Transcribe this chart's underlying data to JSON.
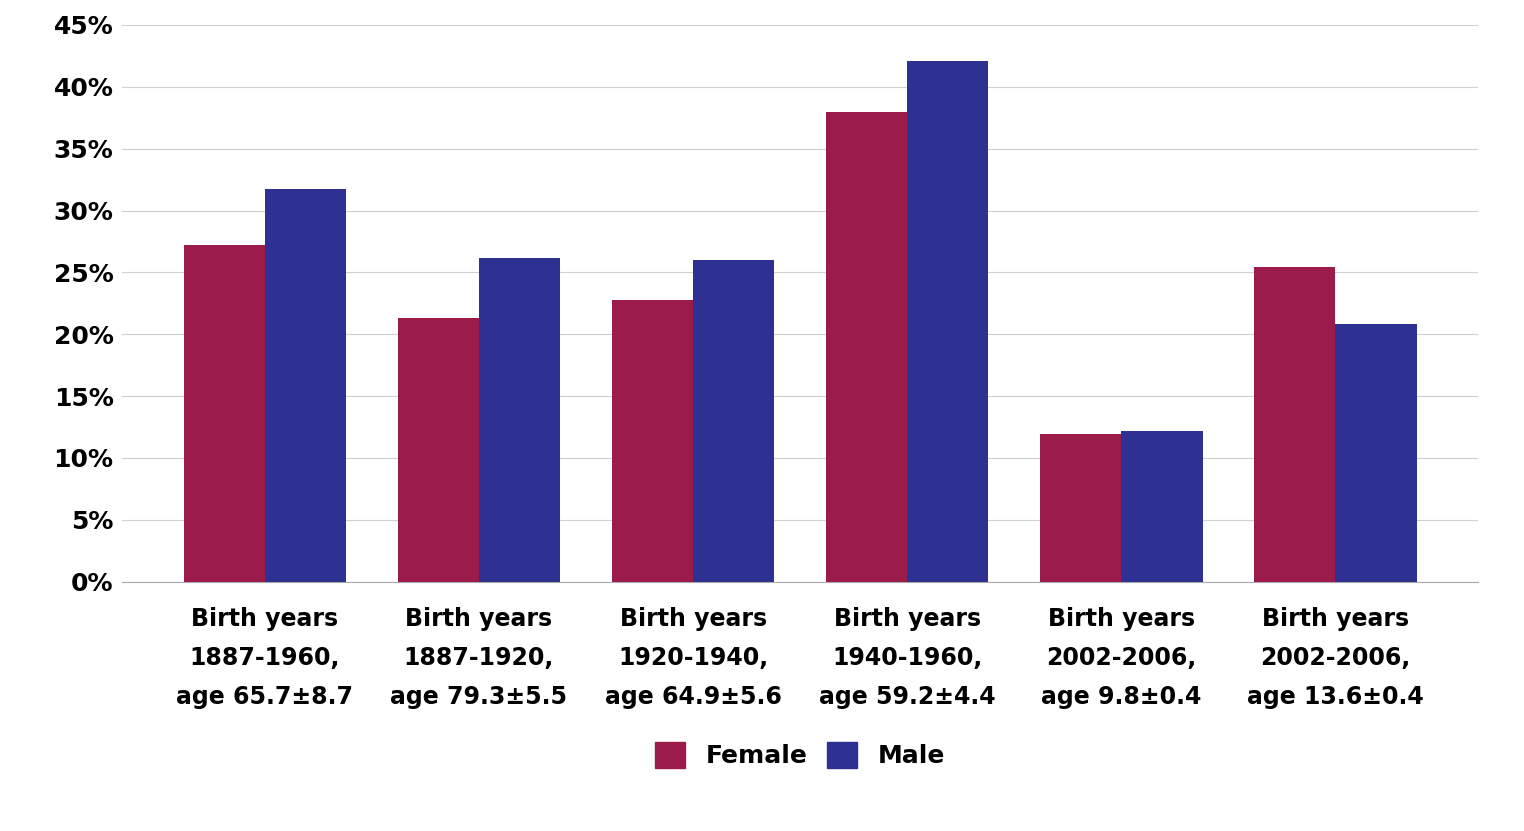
{
  "categories": [
    "Birth years\n1887-1960,\nage 65.7±8.7",
    "Birth years\n1887-1920,\nage 79.3±5.5",
    "Birth years\n1920-1940,\nage 64.9±5.6",
    "Birth years\n1940-1960,\nage 59.2±4.4",
    "Birth years\n2002-2006,\nage 9.8±0.4",
    "Birth years\n2002-2006,\nage 13.6±0.4"
  ],
  "female_values": [
    0.272,
    0.213,
    0.228,
    0.38,
    0.119,
    0.254
  ],
  "male_values": [
    0.317,
    0.262,
    0.26,
    0.421,
    0.122,
    0.208
  ],
  "female_color": "#9B1B4A",
  "male_color": "#2E3192",
  "bar_width": 0.38,
  "ylim": [
    0,
    0.45
  ],
  "yticks": [
    0.0,
    0.05,
    0.1,
    0.15,
    0.2,
    0.25,
    0.3,
    0.35,
    0.4,
    0.45
  ],
  "ytick_labels": [
    "0%",
    "5%",
    "10%",
    "15%",
    "20%",
    "25%",
    "30%",
    "35%",
    "40%",
    "45%"
  ],
  "legend_female": "Female",
  "legend_male": "Male",
  "background_color": "#ffffff",
  "grid_color": "#d0d0d0",
  "ytick_fontsize": 18,
  "xtick_fontsize": 17,
  "legend_fontsize": 18
}
